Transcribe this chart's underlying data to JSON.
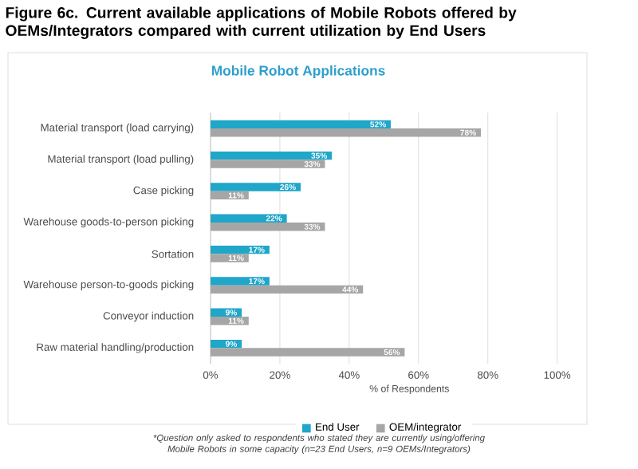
{
  "chart_data": {
    "type": "bar",
    "orientation": "horizontal",
    "title": "Figure 6c. Current available applications of Mobile Robots offered by OEMs/Integrators compared with current utilization by End Users",
    "subtitle": "Mobile Robot Applications",
    "xlabel": "% of Respondents",
    "categories": [
      "Material transport (load carrying)",
      "Material transport (load pulling)",
      "Case picking",
      "Warehouse goods-to-person picking",
      "Sortation",
      "Warehouse person-to-goods picking",
      "Conveyor induction",
      "Raw material handling/production"
    ],
    "series": [
      {
        "name": "End User",
        "color": "#1fa6c9",
        "values": [
          52,
          35,
          26,
          22,
          17,
          17,
          9,
          9
        ],
        "value_labels": [
          "52%",
          "35%",
          "26%",
          "22%",
          "17%",
          "17%",
          "9%",
          "9%"
        ]
      },
      {
        "name": "OEM/integrator",
        "color": "#a6a6a6",
        "values": [
          78,
          33,
          11,
          33,
          11,
          44,
          11,
          56
        ],
        "value_labels": [
          "78%",
          "33%",
          "11%",
          "33%",
          "11%",
          "44%",
          "11%",
          "56%"
        ]
      }
    ],
    "xlim": [
      0,
      100
    ],
    "xticks": [
      {
        "value": 0,
        "label": "0%"
      },
      {
        "value": 20,
        "label": "20%"
      },
      {
        "value": 40,
        "label": "40%"
      },
      {
        "value": 60,
        "label": "60%"
      },
      {
        "value": 80,
        "label": "80%"
      },
      {
        "value": 100,
        "label": "100%"
      }
    ],
    "grid": "x",
    "legend": "bottom",
    "annotations": [
      "*Question only asked to respondents who stated they are currently using/offering Mobile Robots in some capacity (n=23 End Users, n=9 OEMs/Integrators)"
    ]
  }
}
